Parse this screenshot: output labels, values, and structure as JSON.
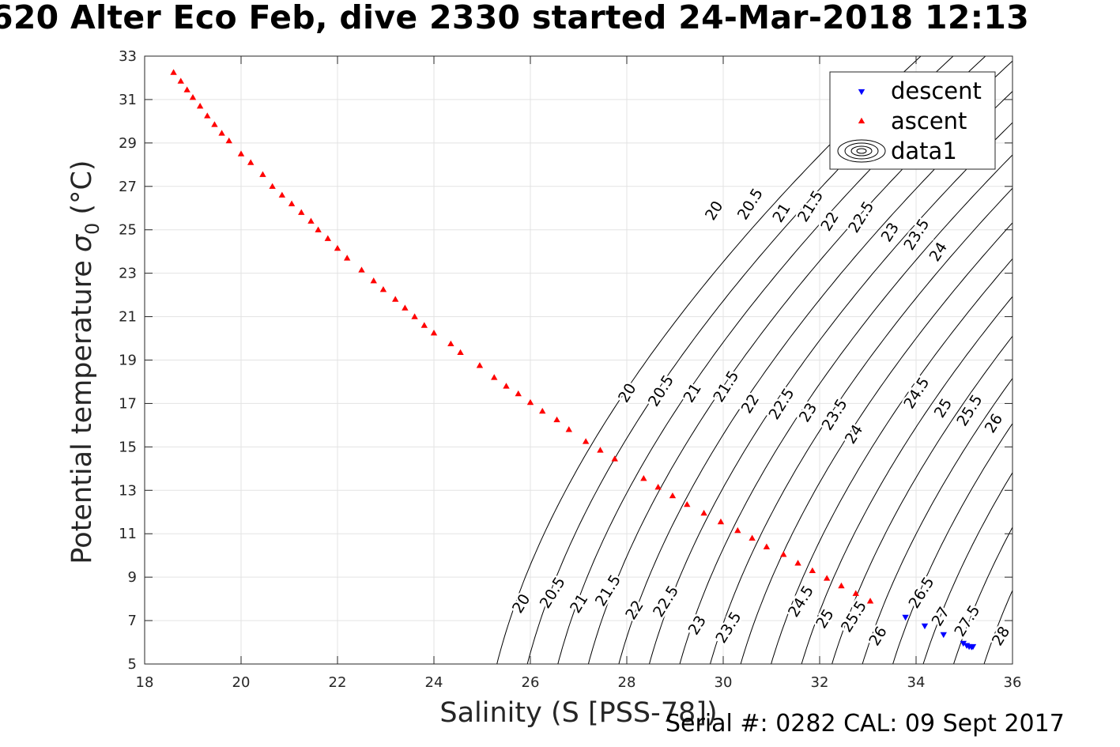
{
  "chart_data": {
    "type": "scatter",
    "title": "620 Alter Eco Feb, dive 2330 started 24-Mar-2018 12:13",
    "xlabel": "Salinity (S [PSS-78])",
    "ylabel": "Potential temperature",
    "ylabel_symbol": "σ",
    "ylabel_subscript": "0",
    "ylabel_unit": "(°C)",
    "xlim": [
      18,
      36
    ],
    "ylim": [
      5,
      33
    ],
    "x_ticks": [
      18,
      20,
      22,
      24,
      26,
      28,
      30,
      32,
      34,
      36
    ],
    "y_ticks": [
      5,
      7,
      9,
      11,
      13,
      15,
      17,
      19,
      21,
      23,
      25,
      27,
      29,
      31,
      33
    ],
    "grid": true,
    "legend_position": "top-right",
    "legend": [
      "descent",
      "ascent",
      "data1"
    ],
    "colors": {
      "descent": "#0000ff",
      "ascent": "#ff0000",
      "contour": "#000000",
      "grid": "#e3e3e3"
    },
    "contour_levels": [
      20,
      20.5,
      21,
      21.5,
      22,
      22.5,
      23,
      23.5,
      24,
      24.5,
      25,
      25.5,
      26,
      26.5,
      27,
      27.5,
      28
    ],
    "contour_labels": [
      {
        "text": "20",
        "x": 25.8,
        "y": 7.8
      },
      {
        "text": "20.5",
        "x": 26.45,
        "y": 8.3
      },
      {
        "text": "21",
        "x": 27.0,
        "y": 7.8
      },
      {
        "text": "21.5",
        "x": 27.6,
        "y": 8.4
      },
      {
        "text": "22",
        "x": 28.15,
        "y": 7.5
      },
      {
        "text": "22.5",
        "x": 28.8,
        "y": 7.9
      },
      {
        "text": "23",
        "x": 29.45,
        "y": 6.8
      },
      {
        "text": "23.5",
        "x": 30.1,
        "y": 6.7
      },
      {
        "text": "24.5",
        "x": 31.6,
        "y": 7.9
      },
      {
        "text": "25",
        "x": 32.1,
        "y": 7.1
      },
      {
        "text": "25.5",
        "x": 32.7,
        "y": 7.2
      },
      {
        "text": "26",
        "x": 33.2,
        "y": 6.3
      },
      {
        "text": "26.5",
        "x": 34.1,
        "y": 8.3
      },
      {
        "text": "27",
        "x": 34.5,
        "y": 7.2
      },
      {
        "text": "27.5",
        "x": 35.05,
        "y": 7.0
      },
      {
        "text": "28",
        "x": 35.75,
        "y": 6.3
      },
      {
        "text": "20",
        "x": 28.0,
        "y": 17.5
      },
      {
        "text": "20.5",
        "x": 28.7,
        "y": 17.6
      },
      {
        "text": "21",
        "x": 29.35,
        "y": 17.5
      },
      {
        "text": "21.5",
        "x": 30.05,
        "y": 17.8
      },
      {
        "text": "22",
        "x": 30.55,
        "y": 17.0
      },
      {
        "text": "22.5",
        "x": 31.2,
        "y": 17.0
      },
      {
        "text": "23",
        "x": 31.75,
        "y": 16.6
      },
      {
        "text": "23.5",
        "x": 32.3,
        "y": 16.5
      },
      {
        "text": "24",
        "x": 32.7,
        "y": 15.6
      },
      {
        "text": "24.5",
        "x": 34.0,
        "y": 17.5
      },
      {
        "text": "25",
        "x": 34.55,
        "y": 16.8
      },
      {
        "text": "25.5",
        "x": 35.1,
        "y": 16.7
      },
      {
        "text": "26",
        "x": 35.6,
        "y": 16.1
      },
      {
        "text": "20",
        "x": 29.8,
        "y": 25.9
      },
      {
        "text": "20.5",
        "x": 30.55,
        "y": 26.2
      },
      {
        "text": "21",
        "x": 31.2,
        "y": 25.8
      },
      {
        "text": "21.5",
        "x": 31.8,
        "y": 26.1
      },
      {
        "text": "22",
        "x": 32.2,
        "y": 25.4
      },
      {
        "text": "22.5",
        "x": 32.85,
        "y": 25.6
      },
      {
        "text": "23",
        "x": 33.45,
        "y": 24.9
      },
      {
        "text": "23.5",
        "x": 34.0,
        "y": 24.8
      },
      {
        "text": "24",
        "x": 34.45,
        "y": 24.0
      }
    ],
    "series": [
      {
        "name": "descent",
        "marker": "down-triangle",
        "points": [
          [
            33.78,
            7.15
          ],
          [
            34.18,
            6.75
          ],
          [
            34.57,
            6.35
          ],
          [
            34.98,
            5.95
          ],
          [
            35.05,
            5.85
          ],
          [
            35.1,
            5.8
          ],
          [
            35.15,
            5.78
          ],
          [
            35.18,
            5.8
          ]
        ]
      },
      {
        "name": "ascent",
        "marker": "up-triangle",
        "points": [
          [
            18.6,
            32.25
          ],
          [
            18.75,
            31.85
          ],
          [
            18.88,
            31.45
          ],
          [
            19.0,
            31.1
          ],
          [
            19.15,
            30.7
          ],
          [
            19.3,
            30.25
          ],
          [
            19.45,
            29.85
          ],
          [
            19.6,
            29.45
          ],
          [
            19.75,
            29.1
          ],
          [
            20.0,
            28.5
          ],
          [
            20.2,
            28.1
          ],
          [
            20.45,
            27.55
          ],
          [
            20.65,
            27.0
          ],
          [
            20.85,
            26.6
          ],
          [
            21.05,
            26.2
          ],
          [
            21.25,
            25.8
          ],
          [
            21.45,
            25.4
          ],
          [
            21.6,
            25.0
          ],
          [
            21.8,
            24.6
          ],
          [
            22.0,
            24.15
          ],
          [
            22.2,
            23.7
          ],
          [
            22.5,
            23.15
          ],
          [
            22.75,
            22.65
          ],
          [
            22.95,
            22.25
          ],
          [
            23.2,
            21.8
          ],
          [
            23.4,
            21.4
          ],
          [
            23.6,
            21.0
          ],
          [
            23.8,
            20.6
          ],
          [
            24.0,
            20.25
          ],
          [
            24.35,
            19.75
          ],
          [
            24.55,
            19.35
          ],
          [
            24.95,
            18.75
          ],
          [
            25.25,
            18.2
          ],
          [
            25.5,
            17.8
          ],
          [
            25.75,
            17.45
          ],
          [
            26.0,
            17.05
          ],
          [
            26.25,
            16.65
          ],
          [
            26.55,
            16.25
          ],
          [
            26.8,
            15.8
          ],
          [
            27.15,
            15.25
          ],
          [
            27.45,
            14.85
          ],
          [
            27.75,
            14.45
          ],
          [
            28.35,
            13.55
          ],
          [
            28.65,
            13.15
          ],
          [
            28.95,
            12.75
          ],
          [
            29.25,
            12.35
          ],
          [
            29.6,
            11.95
          ],
          [
            29.95,
            11.55
          ],
          [
            30.3,
            11.15
          ],
          [
            30.6,
            10.8
          ],
          [
            30.9,
            10.4
          ],
          [
            31.25,
            10.05
          ],
          [
            31.55,
            9.65
          ],
          [
            31.85,
            9.3
          ],
          [
            32.15,
            8.95
          ],
          [
            32.45,
            8.6
          ],
          [
            32.75,
            8.25
          ],
          [
            33.05,
            7.9
          ]
        ]
      }
    ]
  },
  "footer": "Serial #: 0282  CAL: 09 Sept 2017"
}
